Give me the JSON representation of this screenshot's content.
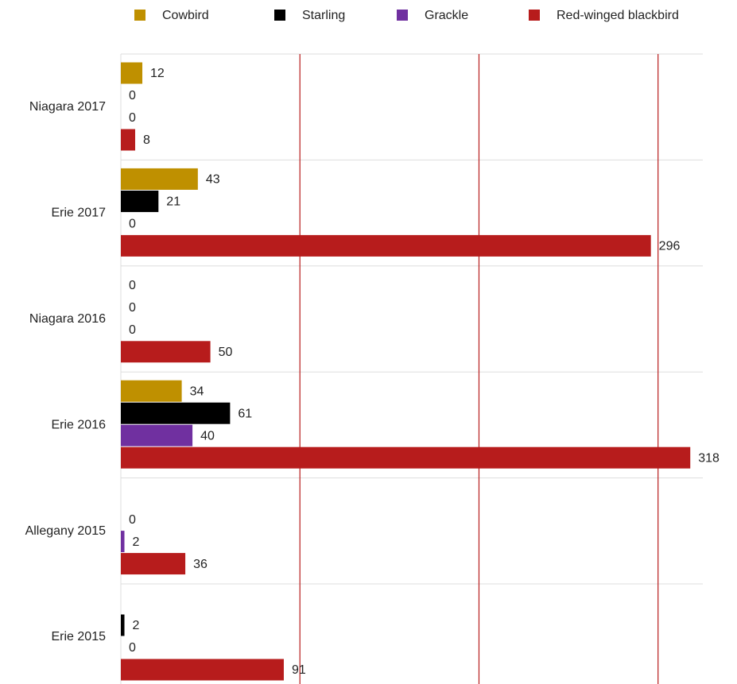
{
  "chart_data": {
    "type": "bar",
    "orientation": "horizontal",
    "categories": [
      "Niagara 2017",
      "Erie 2017",
      "Niagara 2016",
      "Erie 2016",
      "Allegany 2015",
      "Erie 2015"
    ],
    "series": [
      {
        "name": "Cowbird",
        "color": "#bf9000",
        "values": [
          12,
          43,
          0,
          34,
          null,
          null
        ]
      },
      {
        "name": "Starling",
        "color": "#000000",
        "values": [
          0,
          21,
          0,
          61,
          0,
          2
        ]
      },
      {
        "name": "Grackle",
        "color": "#7030a0",
        "values": [
          0,
          0,
          0,
          40,
          2,
          0
        ]
      },
      {
        "name": "Red-winged blackbird",
        "color": "#b71c1c",
        "values": [
          8,
          296,
          50,
          318,
          36,
          91
        ]
      }
    ],
    "xlim": [
      0,
      325
    ],
    "xticks": [
      0,
      100,
      200,
      300
    ],
    "grid": true,
    "grid_color": "#b71c1c",
    "legend": "top"
  }
}
